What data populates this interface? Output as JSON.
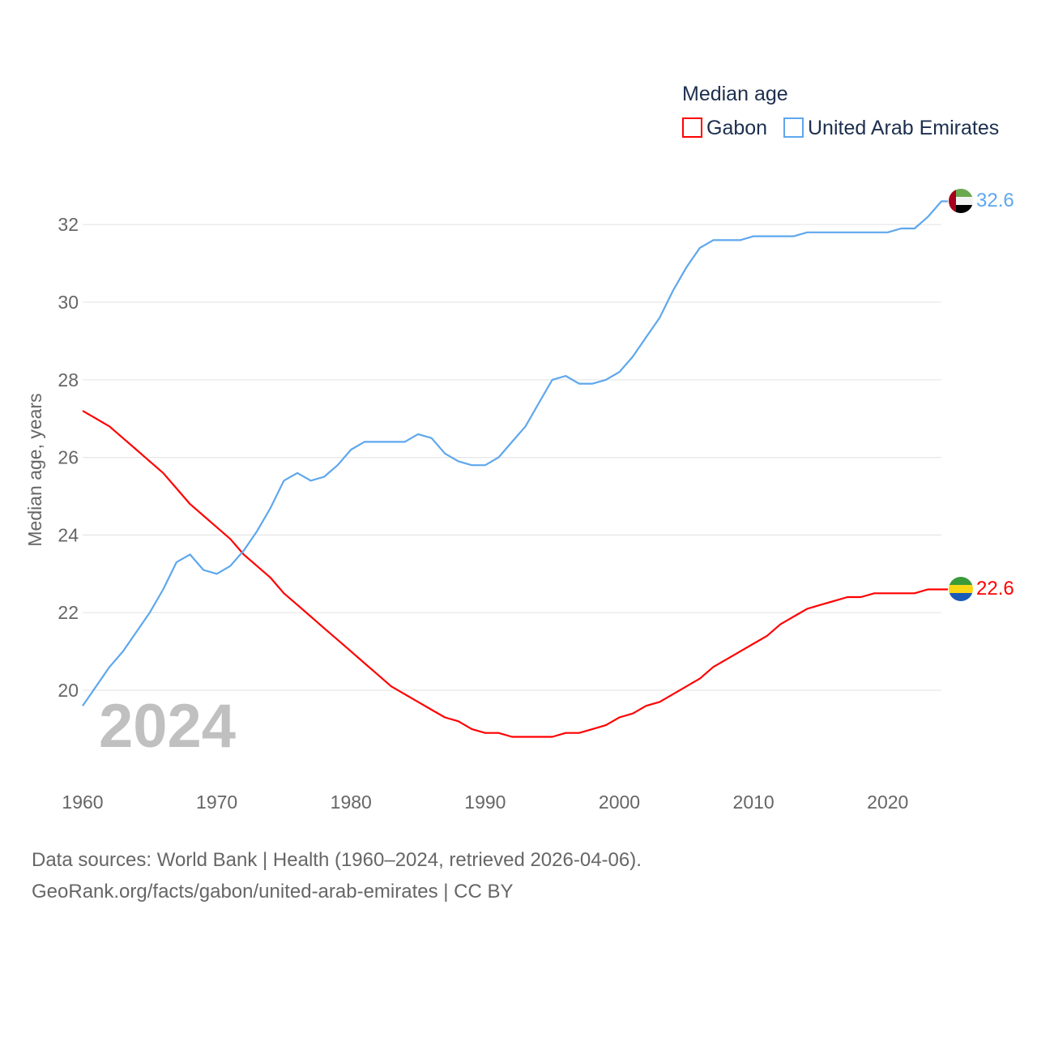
{
  "chart_data": {
    "type": "line",
    "title": "Median age",
    "ylabel": "Median age, years",
    "xlabel": "",
    "xlim": [
      1960,
      2024
    ],
    "ylim": [
      18,
      33
    ],
    "grid": true,
    "legend_placement": "top-right",
    "x_ticks": [
      1960,
      1970,
      1980,
      1990,
      2000,
      2010,
      2020
    ],
    "y_ticks": [
      20,
      22,
      24,
      26,
      28,
      30,
      32
    ],
    "year_label": "2024",
    "x": [
      1960,
      1961,
      1962,
      1963,
      1964,
      1965,
      1966,
      1967,
      1968,
      1969,
      1970,
      1971,
      1972,
      1973,
      1974,
      1975,
      1976,
      1977,
      1978,
      1979,
      1980,
      1981,
      1982,
      1983,
      1984,
      1985,
      1986,
      1987,
      1988,
      1989,
      1990,
      1991,
      1992,
      1993,
      1994,
      1995,
      1996,
      1997,
      1998,
      1999,
      2000,
      2001,
      2002,
      2003,
      2004,
      2005,
      2006,
      2007,
      2008,
      2009,
      2010,
      2011,
      2012,
      2013,
      2014,
      2015,
      2016,
      2017,
      2018,
      2019,
      2020,
      2021,
      2022,
      2023,
      2024
    ],
    "series": [
      {
        "name": "Gabon",
        "color": "#ff0000",
        "end_label": "22.6",
        "flag": "gabon-flag",
        "values": [
          27.2,
          27.0,
          26.8,
          26.5,
          26.2,
          25.9,
          25.6,
          25.2,
          24.8,
          24.5,
          24.2,
          23.9,
          23.5,
          23.2,
          22.9,
          22.5,
          22.2,
          21.9,
          21.6,
          21.3,
          21.0,
          20.7,
          20.4,
          20.1,
          19.9,
          19.7,
          19.5,
          19.3,
          19.2,
          19.0,
          18.9,
          18.9,
          18.8,
          18.8,
          18.8,
          18.8,
          18.9,
          18.9,
          19.0,
          19.1,
          19.3,
          19.4,
          19.6,
          19.7,
          19.9,
          20.1,
          20.3,
          20.6,
          20.8,
          21.0,
          21.2,
          21.4,
          21.7,
          21.9,
          22.1,
          22.2,
          22.3,
          22.4,
          22.4,
          22.5,
          22.5,
          22.5,
          22.5,
          22.6,
          22.6
        ]
      },
      {
        "name": "United Arab Emirates",
        "color": "#5ea7ee",
        "end_label": "32.6",
        "flag": "uae-flag",
        "values": [
          19.6,
          20.1,
          20.6,
          21.0,
          21.5,
          22.0,
          22.6,
          23.3,
          23.5,
          23.1,
          23.0,
          23.2,
          23.6,
          24.1,
          24.7,
          25.4,
          25.6,
          25.4,
          25.5,
          25.8,
          26.2,
          26.4,
          26.4,
          26.4,
          26.4,
          26.6,
          26.5,
          26.1,
          25.9,
          25.8,
          25.8,
          26.0,
          26.4,
          26.8,
          27.4,
          28.0,
          28.1,
          27.9,
          27.9,
          28.0,
          28.2,
          28.6,
          29.1,
          29.6,
          30.3,
          30.9,
          31.4,
          31.6,
          31.6,
          31.6,
          31.7,
          31.7,
          31.7,
          31.7,
          31.8,
          31.8,
          31.8,
          31.8,
          31.8,
          31.8,
          31.8,
          31.9,
          31.9,
          32.2,
          32.6
        ]
      }
    ]
  },
  "sources": {
    "line1": "Data sources: World Bank | Health (1960–2024, retrieved 2026-04-06).",
    "line2": "GeoRank.org/facts/gabon/united-arab-emirates | CC BY"
  }
}
